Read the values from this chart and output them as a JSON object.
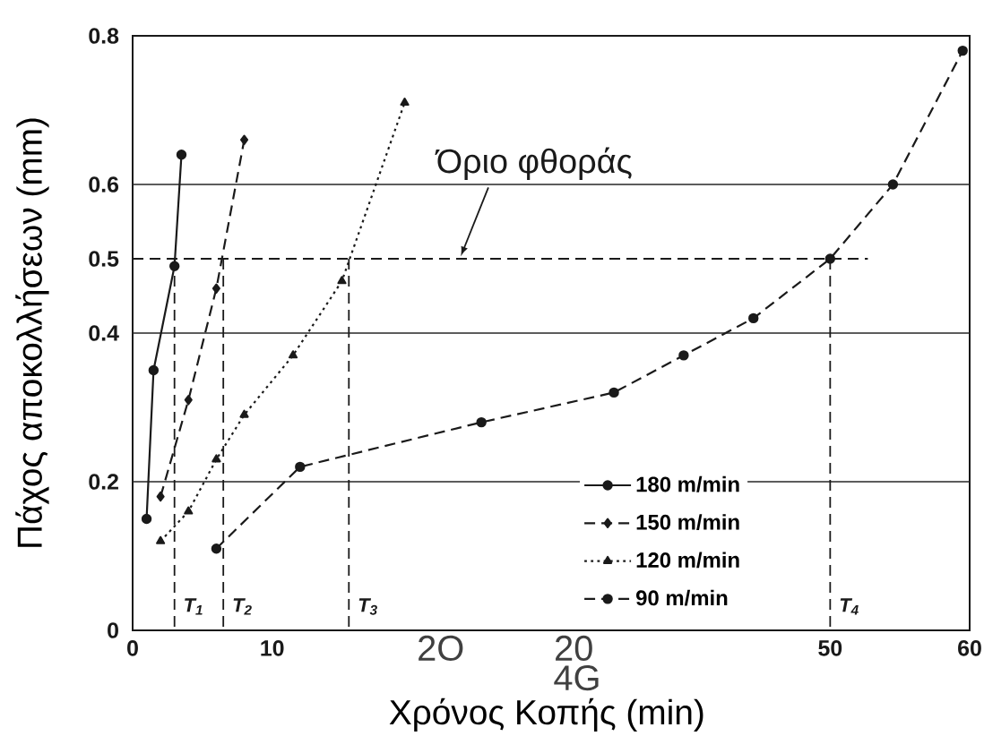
{
  "chart_data": {
    "type": "line",
    "xlabel": "Χρόνος Κοπής (min)",
    "ylabel": "Πάχος αποκολλήσεων (mm)",
    "xlim": [
      0,
      60
    ],
    "ylim": [
      0,
      0.8
    ],
    "xticks": [
      0,
      10,
      50,
      60
    ],
    "yticks": [
      0,
      0.2,
      0.4,
      0.5,
      0.6,
      0.8
    ],
    "grid": "y",
    "legend": "bottom right",
    "series": [
      {
        "name": "180 m/min",
        "color": "#1a1a1a",
        "marker": "circle",
        "line_style": "solid",
        "x": [
          1,
          1.5,
          3,
          3.5
        ],
        "values": [
          0.15,
          0.35,
          0.49,
          0.64
        ]
      },
      {
        "name": "150 m/min",
        "color": "#1a1a1a",
        "marker": "diamond",
        "line_style": "dashed",
        "x": [
          2,
          4,
          6,
          8
        ],
        "values": [
          0.18,
          0.31,
          0.46,
          0.66
        ]
      },
      {
        "name": "120 m/min",
        "color": "#1a1a1a",
        "marker": "triangle",
        "line_style": "dotted",
        "x": [
          2,
          4,
          6,
          8,
          11.5,
          15,
          19.5
        ],
        "values": [
          0.12,
          0.16,
          0.23,
          0.29,
          0.37,
          0.47,
          0.71
        ]
      },
      {
        "name": "90 m/min",
        "color": "#1a1a1a",
        "marker": "circle",
        "line_style": "dashed",
        "x": [
          6,
          12,
          25,
          34.5,
          39.5,
          44.5,
          50,
          54.5,
          59.5
        ],
        "values": [
          0.11,
          0.22,
          0.28,
          0.32,
          0.37,
          0.42,
          0.5,
          0.6,
          0.78
        ]
      }
    ],
    "ref_lines": [
      {
        "axis": "y",
        "value": 0.5,
        "label": "Όριο φθοράς",
        "line_style": "dashed",
        "color": "#1a1a1a"
      },
      {
        "axis": "x",
        "value": 3,
        "label": "T$_{1}$",
        "line_style": "dashed",
        "color": "#1a1a1a"
      },
      {
        "axis": "x",
        "value": 6.5,
        "label": "T$_{2}$",
        "line_style": "dashed",
        "color": "#1a1a1a"
      },
      {
        "axis": "x",
        "value": 15.5,
        "label": "T$_{3}$",
        "line_style": "dashed",
        "color": "#1a1a1a"
      },
      {
        "axis": "x",
        "value": 50,
        "label": "T$_{4}$",
        "line_style": "dashed",
        "color": "#1a1a1a"
      }
    ],
    "annotations": [
      "2O",
      "20",
      "4G"
    ]
  }
}
